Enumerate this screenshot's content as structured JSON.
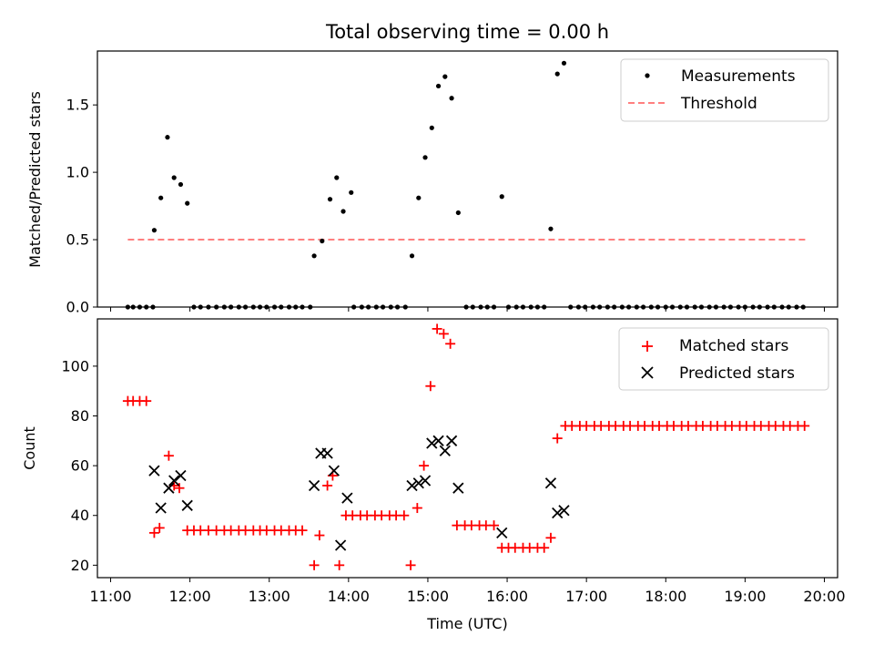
{
  "figure": {
    "title": "Total observing time = 0.00 h",
    "x_axis_label": "Time (UTC)",
    "x_tick_labels": [
      "11:00",
      "12:00",
      "13:00",
      "14:00",
      "15:00",
      "16:00",
      "17:00",
      "18:00",
      "19:00",
      "20:00"
    ]
  },
  "colors": {
    "measurements": "#000000",
    "threshold": "#ff7f7f",
    "matched": "#ff0000",
    "predicted": "#000000"
  },
  "chart_data": [
    {
      "type": "scatter",
      "ylabel": "Matched/Predicted stars",
      "xlim": [
        "10:50",
        "20:10"
      ],
      "ylim": [
        0,
        1.9
      ],
      "yticks": [
        0.0,
        0.5,
        1.0,
        1.5
      ],
      "ytick_labels": [
        "0.0",
        "0.5",
        "1.0",
        "1.5"
      ],
      "legend": {
        "location": "top-right",
        "entries": [
          "Measurements",
          "Threshold"
        ]
      },
      "threshold": {
        "name": "Threshold",
        "value": 0.5,
        "x": [
          "11:13",
          "19:46"
        ],
        "style": "dashed"
      },
      "series": [
        {
          "name": "Measurements",
          "marker": "dot",
          "points": [
            [
              "11:13",
              0
            ],
            [
              "11:17",
              0
            ],
            [
              "11:22",
              0
            ],
            [
              "11:27",
              0
            ],
            [
              "11:32",
              0
            ],
            [
              "11:33",
              0.57
            ],
            [
              "11:38",
              0.81
            ],
            [
              "11:43",
              1.26
            ],
            [
              "11:48",
              0.96
            ],
            [
              "11:53",
              0.91
            ],
            [
              "11:58",
              0.77
            ],
            [
              "12:03",
              0
            ],
            [
              "12:08",
              0
            ],
            [
              "12:14",
              0
            ],
            [
              "12:20",
              0
            ],
            [
              "12:26",
              0
            ],
            [
              "12:31",
              0
            ],
            [
              "12:37",
              0
            ],
            [
              "12:42",
              0
            ],
            [
              "12:48",
              0
            ],
            [
              "12:53",
              0
            ],
            [
              "12:58",
              0
            ],
            [
              "13:04",
              0
            ],
            [
              "13:09",
              0
            ],
            [
              "13:15",
              0
            ],
            [
              "13:20",
              0
            ],
            [
              "13:25",
              0
            ],
            [
              "13:31",
              0
            ],
            [
              "13:34",
              0.38
            ],
            [
              "13:40",
              0.49
            ],
            [
              "13:46",
              0.8
            ],
            [
              "13:51",
              0.96
            ],
            [
              "13:56",
              0.71
            ],
            [
              "14:02",
              0.85
            ],
            [
              "14:04",
              0
            ],
            [
              "14:10",
              0
            ],
            [
              "14:15",
              0
            ],
            [
              "14:21",
              0
            ],
            [
              "14:26",
              0
            ],
            [
              "14:32",
              0
            ],
            [
              "14:37",
              0
            ],
            [
              "14:43",
              0
            ],
            [
              "14:48",
              0.38
            ],
            [
              "14:53",
              0.81
            ],
            [
              "14:58",
              1.11
            ],
            [
              "15:03",
              1.33
            ],
            [
              "15:08",
              1.64
            ],
            [
              "15:13",
              1.71
            ],
            [
              "15:18",
              1.55
            ],
            [
              "15:23",
              0.7
            ],
            [
              "15:29",
              0
            ],
            [
              "15:34",
              0
            ],
            [
              "15:40",
              0
            ],
            [
              "15:45",
              0
            ],
            [
              "15:50",
              0
            ],
            [
              "15:56",
              0.82
            ],
            [
              "16:01",
              0
            ],
            [
              "16:07",
              0
            ],
            [
              "16:12",
              0
            ],
            [
              "16:18",
              0
            ],
            [
              "16:23",
              0
            ],
            [
              "16:28",
              0
            ],
            [
              "16:33",
              0.58
            ],
            [
              "16:38",
              1.73
            ],
            [
              "16:43",
              1.81
            ],
            [
              "16:48",
              0
            ],
            [
              "16:54",
              0
            ],
            [
              "16:59",
              0
            ],
            [
              "17:05",
              0
            ],
            [
              "17:10",
              0
            ],
            [
              "17:16",
              0
            ],
            [
              "17:21",
              0
            ],
            [
              "17:27",
              0
            ],
            [
              "17:32",
              0
            ],
            [
              "17:38",
              0
            ],
            [
              "17:43",
              0
            ],
            [
              "17:49",
              0
            ],
            [
              "17:54",
              0
            ],
            [
              "18:00",
              0
            ],
            [
              "18:05",
              0
            ],
            [
              "18:11",
              0
            ],
            [
              "18:16",
              0
            ],
            [
              "18:22",
              0
            ],
            [
              "18:27",
              0
            ],
            [
              "18:33",
              0
            ],
            [
              "18:38",
              0
            ],
            [
              "18:44",
              0
            ],
            [
              "18:49",
              0
            ],
            [
              "18:55",
              0
            ],
            [
              "19:00",
              0
            ],
            [
              "19:06",
              0
            ],
            [
              "19:11",
              0
            ],
            [
              "19:17",
              0
            ],
            [
              "19:22",
              0
            ],
            [
              "19:28",
              0
            ],
            [
              "19:33",
              0
            ],
            [
              "19:39",
              0
            ],
            [
              "19:44",
              0
            ]
          ]
        }
      ]
    },
    {
      "type": "scatter",
      "xlabel": "Time (UTC)",
      "ylabel": "Count",
      "xlim": [
        "10:50",
        "20:10"
      ],
      "ylim": [
        15,
        119
      ],
      "yticks": [
        20,
        40,
        60,
        80,
        100
      ],
      "ytick_labels": [
        "20",
        "40",
        "60",
        "80",
        "100"
      ],
      "xticks": [
        "11:00",
        "12:00",
        "13:00",
        "14:00",
        "15:00",
        "16:00",
        "17:00",
        "18:00",
        "19:00",
        "20:00"
      ],
      "legend": {
        "location": "top-right",
        "entries": [
          "Matched stars",
          "Predicted stars"
        ]
      },
      "series": [
        {
          "name": "Matched stars",
          "marker": "plus",
          "points": [
            [
              "11:13",
              86
            ],
            [
              "11:17",
              86
            ],
            [
              "11:22",
              86
            ],
            [
              "11:27",
              86
            ],
            [
              "11:33",
              33
            ],
            [
              "11:37",
              35
            ],
            [
              "11:44",
              64
            ],
            [
              "11:48",
              52
            ],
            [
              "11:52",
              51
            ],
            [
              "11:58",
              34
            ],
            [
              "12:03",
              34
            ],
            [
              "12:08",
              34
            ],
            [
              "12:14",
              34
            ],
            [
              "12:20",
              34
            ],
            [
              "12:26",
              34
            ],
            [
              "12:31",
              34
            ],
            [
              "12:37",
              34
            ],
            [
              "12:42",
              34
            ],
            [
              "12:48",
              34
            ],
            [
              "12:53",
              34
            ],
            [
              "12:58",
              34
            ],
            [
              "13:04",
              34
            ],
            [
              "13:09",
              34
            ],
            [
              "13:15",
              34
            ],
            [
              "13:20",
              34
            ],
            [
              "13:25",
              34
            ],
            [
              "13:34",
              20
            ],
            [
              "13:38",
              32
            ],
            [
              "13:44",
              52
            ],
            [
              "13:48",
              56
            ],
            [
              "13:53",
              20
            ],
            [
              "13:58",
              40
            ],
            [
              "14:03",
              40
            ],
            [
              "14:09",
              40
            ],
            [
              "14:14",
              40
            ],
            [
              "14:20",
              40
            ],
            [
              "14:25",
              40
            ],
            [
              "14:31",
              40
            ],
            [
              "14:36",
              40
            ],
            [
              "14:42",
              40
            ],
            [
              "14:47",
              20
            ],
            [
              "14:52",
              43
            ],
            [
              "14:57",
              60
            ],
            [
              "15:02",
              92
            ],
            [
              "15:07",
              115
            ],
            [
              "15:12",
              113
            ],
            [
              "15:17",
              109
            ],
            [
              "15:22",
              36
            ],
            [
              "15:28",
              36
            ],
            [
              "15:33",
              36
            ],
            [
              "15:39",
              36
            ],
            [
              "15:44",
              36
            ],
            [
              "15:50",
              36
            ],
            [
              "15:56",
              27
            ],
            [
              "16:01",
              27
            ],
            [
              "16:06",
              27
            ],
            [
              "16:12",
              27
            ],
            [
              "16:17",
              27
            ],
            [
              "16:23",
              27
            ],
            [
              "16:28",
              27
            ],
            [
              "16:33",
              31
            ],
            [
              "16:38",
              71
            ],
            [
              "16:44",
              76
            ],
            [
              "16:49",
              76
            ],
            [
              "16:55",
              76
            ],
            [
              "17:00",
              76
            ],
            [
              "17:06",
              76
            ],
            [
              "17:11",
              76
            ],
            [
              "17:17",
              76
            ],
            [
              "17:22",
              76
            ],
            [
              "17:28",
              76
            ],
            [
              "17:33",
              76
            ],
            [
              "17:39",
              76
            ],
            [
              "17:44",
              76
            ],
            [
              "17:50",
              76
            ],
            [
              "17:55",
              76
            ],
            [
              "18:01",
              76
            ],
            [
              "18:06",
              76
            ],
            [
              "18:12",
              76
            ],
            [
              "18:17",
              76
            ],
            [
              "18:23",
              76
            ],
            [
              "18:28",
              76
            ],
            [
              "18:34",
              76
            ],
            [
              "18:39",
              76
            ],
            [
              "18:45",
              76
            ],
            [
              "18:50",
              76
            ],
            [
              "18:56",
              76
            ],
            [
              "19:01",
              76
            ],
            [
              "19:07",
              76
            ],
            [
              "19:12",
              76
            ],
            [
              "19:18",
              76
            ],
            [
              "19:23",
              76
            ],
            [
              "19:29",
              76
            ],
            [
              "19:34",
              76
            ],
            [
              "19:40",
              76
            ],
            [
              "19:45",
              76
            ]
          ]
        },
        {
          "name": "Predicted stars",
          "marker": "x",
          "points": [
            [
              "11:33",
              58
            ],
            [
              "11:38",
              43
            ],
            [
              "11:44",
              51
            ],
            [
              "11:48",
              54
            ],
            [
              "11:53",
              56
            ],
            [
              "11:58",
              44
            ],
            [
              "13:34",
              52
            ],
            [
              "13:39",
              65
            ],
            [
              "13:44",
              65
            ],
            [
              "13:49",
              58
            ],
            [
              "13:54",
              28
            ],
            [
              "13:59",
              47
            ],
            [
              "14:48",
              52
            ],
            [
              "14:53",
              53
            ],
            [
              "14:58",
              54
            ],
            [
              "15:03",
              69
            ],
            [
              "15:08",
              70
            ],
            [
              "15:13",
              66
            ],
            [
              "15:18",
              70
            ],
            [
              "15:23",
              51
            ],
            [
              "15:56",
              33
            ],
            [
              "16:33",
              53
            ],
            [
              "16:38",
              41
            ],
            [
              "16:43",
              42
            ]
          ]
        }
      ]
    }
  ]
}
